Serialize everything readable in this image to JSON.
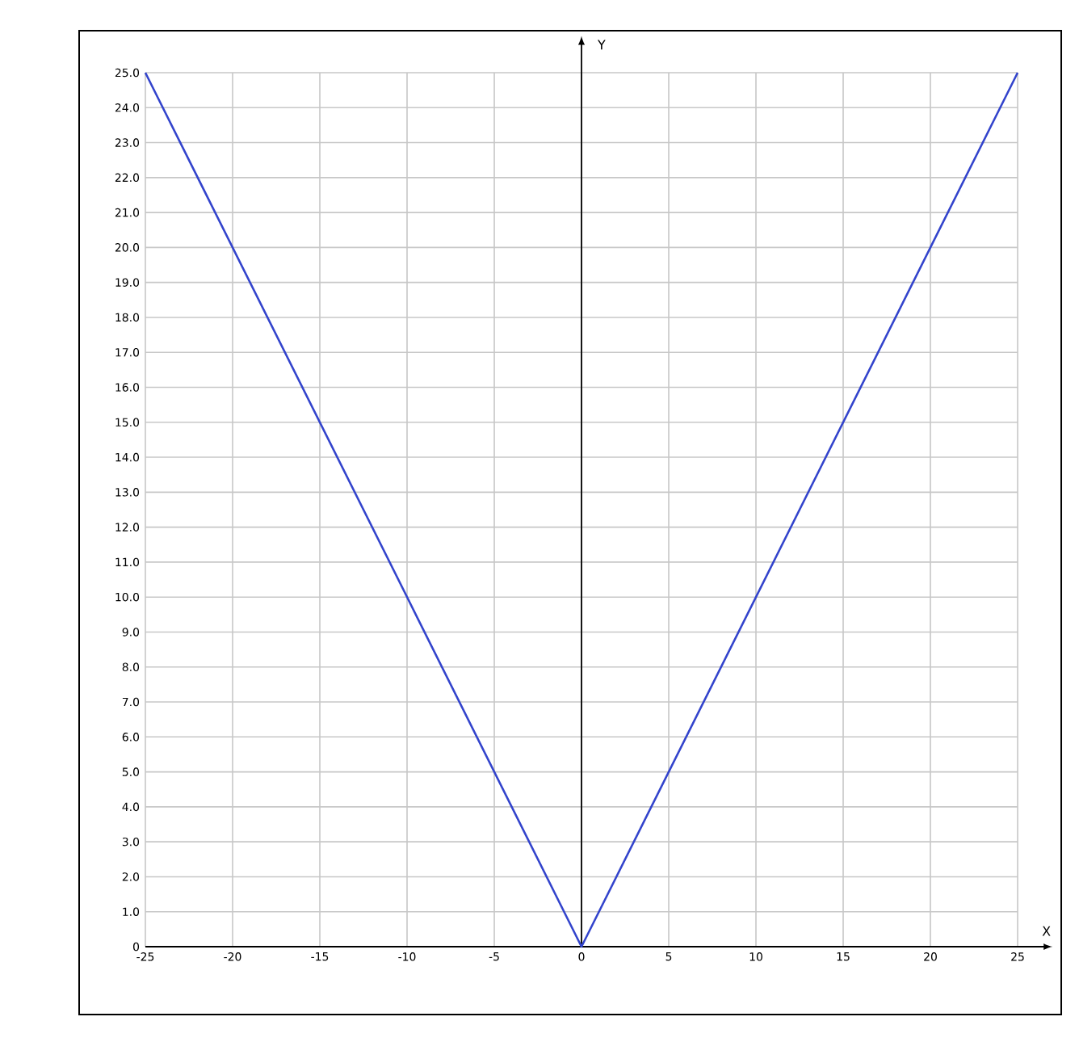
{
  "chart_data": {
    "type": "line",
    "xlabel": "X",
    "ylabel": "Y",
    "x": [
      -25,
      0,
      25
    ],
    "series": [
      {
        "color": "#3344cc",
        "values": [
          25,
          0,
          25
        ]
      }
    ],
    "xlim": [
      -25,
      25
    ],
    "ylim": [
      0,
      25
    ],
    "xticks": [
      -25,
      -20,
      -15,
      -10,
      -5,
      0,
      5,
      10,
      15,
      20,
      25
    ],
    "yticks": [
      0,
      {
        "value": 1,
        "label": "1.0"
      },
      {
        "value": 2,
        "label": "2.0"
      },
      {
        "value": 3,
        "label": "3.0"
      },
      {
        "value": 4,
        "label": "4.0"
      },
      {
        "value": 5,
        "label": "5.0"
      },
      {
        "value": 6,
        "label": "6.0"
      },
      {
        "value": 7,
        "label": "7.0"
      },
      {
        "value": 8,
        "label": "8.0"
      },
      {
        "value": 9,
        "label": "9.0"
      },
      {
        "value": 10,
        "label": "10.0"
      },
      {
        "value": 11,
        "label": "11.0"
      },
      {
        "value": 12,
        "label": "12.0"
      },
      {
        "value": 13,
        "label": "13.0"
      },
      {
        "value": 14,
        "label": "14.0"
      },
      {
        "value": 15,
        "label": "15.0"
      },
      {
        "value": 16,
        "label": "16.0"
      },
      {
        "value": 17,
        "label": "17.0"
      },
      {
        "value": 18,
        "label": "18.0"
      },
      {
        "value": 19,
        "label": "19.0"
      },
      {
        "value": 20,
        "label": "20.0"
      },
      {
        "value": 21,
        "label": "21.0"
      },
      {
        "value": 22,
        "label": "22.0"
      },
      {
        "value": 23,
        "label": "23.0"
      },
      {
        "value": 24,
        "label": "24.0"
      },
      {
        "value": 25,
        "label": "25.0"
      }
    ],
    "grid": true
  }
}
